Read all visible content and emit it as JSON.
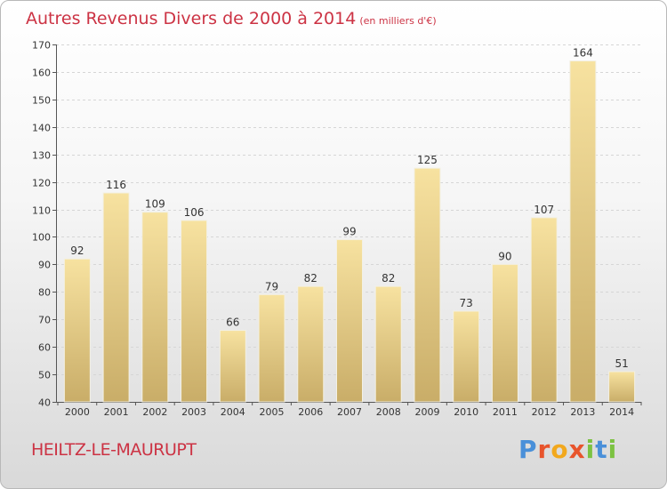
{
  "title": "Autres Revenus Divers de 2000 à 2014",
  "title_unit": "(en milliers d'€)",
  "commune": "HEILTZ-LE-MAURUPT",
  "logo": {
    "text": "Proxiti",
    "colors": [
      "#4a90d9",
      "#e8542c",
      "#f2a81d",
      "#e8542c",
      "#7cc242",
      "#4a90d9",
      "#7cc242"
    ]
  },
  "colors": {
    "title": "#cc3344",
    "bar_light": "#f7e2a0",
    "bar_dark": "#c9ad68"
  },
  "chart_data": {
    "type": "bar",
    "title": "Autres Revenus Divers de 2000 à 2014",
    "categories": [
      "2000",
      "2001",
      "2002",
      "2003",
      "2004",
      "2005",
      "2006",
      "2007",
      "2008",
      "2009",
      "2010",
      "2011",
      "2012",
      "2013",
      "2014"
    ],
    "values": [
      92,
      116,
      109,
      106,
      66,
      79,
      82,
      99,
      82,
      125,
      73,
      90,
      107,
      164,
      51
    ],
    "ylim": [
      40,
      170
    ],
    "yticks": [
      40,
      50,
      60,
      70,
      80,
      90,
      100,
      110,
      120,
      130,
      140,
      150,
      160,
      170
    ],
    "grid": true,
    "data_labels": true
  }
}
